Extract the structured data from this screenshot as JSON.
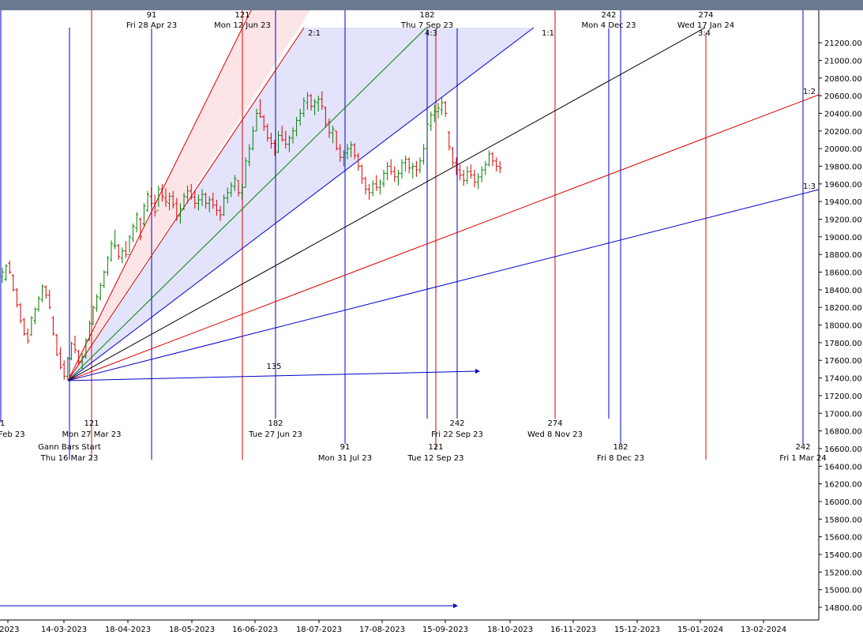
{
  "chart_data": {
    "type": "gann-bar-chart",
    "y_axis": {
      "ylim": [
        14700,
        21450
      ],
      "ticks": [
        "14800.00",
        "15000.00",
        "15200.00",
        "15400.00",
        "15600.00",
        "15800.00",
        "16000.00",
        "16200.00",
        "16400.00",
        "16600.00",
        "16800.00",
        "17000.00",
        "17200.00",
        "17400.00",
        "17600.00",
        "17800.00",
        "18000.00",
        "18200.00",
        "18400.00",
        "18600.00",
        "18800.00",
        "19000.00",
        "19200.00",
        "19400.00",
        "19600.00",
        "19800.00",
        "20000.00",
        "20200.00",
        "20400.00",
        "20600.00",
        "20800.00",
        "21000.00",
        "21200.00"
      ]
    },
    "x_axis": {
      "ticks": [
        "-2023",
        "14-03-2023",
        "18-04-2023",
        "18-05-2023",
        "16-06-2023",
        "18-07-2023",
        "17-08-2023",
        "15-09-2023",
        "18-10-2023",
        "16-11-2023",
        "15-12-2023",
        "15-01-2024",
        "13-02-2024"
      ]
    },
    "colors": {
      "blue": "#0000cc",
      "red": "#dd0000",
      "green": "#008000",
      "black": "#000000",
      "band_blue": "#e3e3fb",
      "band_red": "#fde4e6",
      "header": "#6b7a90"
    },
    "gann_origin": {
      "label1": "Gann Bars Start",
      "label2": "Thu 16 Mar 23",
      "price": 17370
    },
    "fan_labels": [
      "2:1",
      "4:3",
      "1:1",
      "3:4",
      "1:2",
      "1:3"
    ],
    "horizontal_ray_label": "135",
    "cycle_lines_top": [
      {
        "count": "91",
        "date": "Fri 28 Apr 23",
        "color": "blue"
      },
      {
        "count": "121",
        "date": "Mon 12 Jun 23",
        "color": "red"
      },
      {
        "count": "182",
        "date": "Thu 7 Sep 23",
        "color": "blue"
      },
      {
        "count": "242",
        "date": "Mon 4 Dec 23",
        "color": "blue"
      },
      {
        "count": "274",
        "date": "Wed 17 Jan 24",
        "color": "red"
      }
    ],
    "cycle_lines_bottom": [
      {
        "count": "1",
        "date": "Feb 23",
        "color": "blue"
      },
      {
        "count": "121",
        "date": "Mon 27 Mar 23",
        "color": "red"
      },
      {
        "count": "182",
        "date": "Tue 27 Jun 23",
        "color": "blue"
      },
      {
        "count": "91",
        "date": "Mon 31 Jul 23",
        "color": "blue"
      },
      {
        "count": "121",
        "date": "Tue 12 Sep 23",
        "color": "red"
      },
      {
        "count": "242",
        "date": "Fri 22 Sep 23",
        "color": "blue"
      },
      {
        "count": "274",
        "date": "Wed 8 Nov 23",
        "color": "red"
      },
      {
        "count": "182",
        "date": "Fri 8 Dec 23",
        "color": "blue"
      },
      {
        "count": "242",
        "date": "Fri 1 Mar 24",
        "color": "blue"
      }
    ],
    "price_bars": [
      {
        "h": 18650,
        "l": 18480,
        "o": 18550,
        "c": 18600
      },
      {
        "h": 18690,
        "l": 18500,
        "o": 18520,
        "c": 18670
      },
      {
        "h": 18730,
        "l": 18580,
        "o": 18700,
        "c": 18600
      },
      {
        "h": 18580,
        "l": 18380,
        "o": 18560,
        "c": 18400
      },
      {
        "h": 18420,
        "l": 18200,
        "o": 18400,
        "c": 18230
      },
      {
        "h": 18250,
        "l": 18020,
        "o": 18230,
        "c": 18050
      },
      {
        "h": 18080,
        "l": 17880,
        "o": 18060,
        "c": 17900
      },
      {
        "h": 17960,
        "l": 17790,
        "o": 17900,
        "c": 17820
      },
      {
        "h": 18100,
        "l": 17880,
        "o": 17890,
        "c": 18080
      },
      {
        "h": 18200,
        "l": 18010,
        "o": 18050,
        "c": 18180
      },
      {
        "h": 18330,
        "l": 18150,
        "o": 18180,
        "c": 18300
      },
      {
        "h": 18460,
        "l": 18260,
        "o": 18290,
        "c": 18440
      },
      {
        "h": 18450,
        "l": 18300,
        "o": 18430,
        "c": 18340
      },
      {
        "h": 18400,
        "l": 18180,
        "o": 18340,
        "c": 18200
      },
      {
        "h": 18100,
        "l": 17880,
        "o": 18080,
        "c": 17900
      },
      {
        "h": 17900,
        "l": 17650,
        "o": 17880,
        "c": 17660
      },
      {
        "h": 17750,
        "l": 17500,
        "o": 17680,
        "c": 17520
      },
      {
        "h": 17600,
        "l": 17380,
        "o": 17550,
        "c": 17420
      },
      {
        "h": 17640,
        "l": 17380,
        "o": 17420,
        "c": 17620
      },
      {
        "h": 17810,
        "l": 17600,
        "o": 17620,
        "c": 17790
      },
      {
        "h": 17880,
        "l": 17680,
        "o": 17780,
        "c": 17720
      },
      {
        "h": 17720,
        "l": 17550,
        "o": 17700,
        "c": 17580
      },
      {
        "h": 17680,
        "l": 17500,
        "o": 17580,
        "c": 17640
      },
      {
        "h": 17850,
        "l": 17620,
        "o": 17640,
        "c": 17830
      },
      {
        "h": 18050,
        "l": 17820,
        "o": 17830,
        "c": 18020
      },
      {
        "h": 18220,
        "l": 18000,
        "o": 18010,
        "c": 18200
      },
      {
        "h": 18350,
        "l": 18150,
        "o": 18190,
        "c": 18320
      },
      {
        "h": 18480,
        "l": 18280,
        "o": 18310,
        "c": 18450
      },
      {
        "h": 18620,
        "l": 18420,
        "o": 18450,
        "c": 18600
      },
      {
        "h": 18780,
        "l": 18560,
        "o": 18600,
        "c": 18760
      },
      {
        "h": 18960,
        "l": 18720,
        "o": 18740,
        "c": 18920
      },
      {
        "h": 19080,
        "l": 18860,
        "o": 18900,
        "c": 18900
      },
      {
        "h": 18920,
        "l": 18740,
        "o": 18900,
        "c": 18780
      },
      {
        "h": 18880,
        "l": 18700,
        "o": 18760,
        "c": 18840
      },
      {
        "h": 18950,
        "l": 18760,
        "o": 18840,
        "c": 18800
      },
      {
        "h": 19020,
        "l": 18820,
        "o": 18800,
        "c": 19000
      },
      {
        "h": 19150,
        "l": 18940,
        "o": 18980,
        "c": 19120
      },
      {
        "h": 19280,
        "l": 19050,
        "o": 19100,
        "c": 19250
      },
      {
        "h": 19220,
        "l": 18960,
        "o": 19200,
        "c": 19000
      },
      {
        "h": 19380,
        "l": 19120,
        "o": 19150,
        "c": 19350
      },
      {
        "h": 19520,
        "l": 19280,
        "o": 19300,
        "c": 19480
      },
      {
        "h": 19560,
        "l": 19340,
        "o": 19460,
        "c": 19380
      },
      {
        "h": 19480,
        "l": 19230,
        "o": 19380,
        "c": 19280
      },
      {
        "h": 19580,
        "l": 19340,
        "o": 19300,
        "c": 19540
      },
      {
        "h": 19600,
        "l": 19400,
        "o": 19540,
        "c": 19460
      },
      {
        "h": 19550,
        "l": 19340,
        "o": 19440,
        "c": 19400
      },
      {
        "h": 19500,
        "l": 19300,
        "o": 19380,
        "c": 19460
      },
      {
        "h": 19520,
        "l": 19320,
        "o": 19460,
        "c": 19360
      },
      {
        "h": 19440,
        "l": 19180,
        "o": 19380,
        "c": 19240
      },
      {
        "h": 19380,
        "l": 19150,
        "o": 19240,
        "c": 19320
      },
      {
        "h": 19500,
        "l": 19300,
        "o": 19320,
        "c": 19460
      },
      {
        "h": 19580,
        "l": 19380,
        "o": 19450,
        "c": 19520
      },
      {
        "h": 19600,
        "l": 19420,
        "o": 19520,
        "c": 19450
      },
      {
        "h": 19520,
        "l": 19320,
        "o": 19450,
        "c": 19380
      },
      {
        "h": 19480,
        "l": 19300,
        "o": 19380,
        "c": 19420
      },
      {
        "h": 19540,
        "l": 19350,
        "o": 19420,
        "c": 19480
      },
      {
        "h": 19500,
        "l": 19320,
        "o": 19480,
        "c": 19380
      },
      {
        "h": 19460,
        "l": 19280,
        "o": 19380,
        "c": 19420
      },
      {
        "h": 19500,
        "l": 19320,
        "o": 19420,
        "c": 19360
      },
      {
        "h": 19420,
        "l": 19240,
        "o": 19360,
        "c": 19300
      },
      {
        "h": 19350,
        "l": 19180,
        "o": 19300,
        "c": 19250
      },
      {
        "h": 19480,
        "l": 19240,
        "o": 19250,
        "c": 19440
      },
      {
        "h": 19560,
        "l": 19380,
        "o": 19440,
        "c": 19500
      },
      {
        "h": 19620,
        "l": 19450,
        "o": 19500,
        "c": 19580
      },
      {
        "h": 19700,
        "l": 19520,
        "o": 19570,
        "c": 19660
      },
      {
        "h": 19640,
        "l": 19460,
        "o": 19640,
        "c": 19500
      },
      {
        "h": 19600,
        "l": 19420,
        "o": 19500,
        "c": 19560
      },
      {
        "h": 19900,
        "l": 19560,
        "o": 19560,
        "c": 19860
      },
      {
        "h": 20050,
        "l": 19800,
        "o": 19850,
        "c": 20000
      },
      {
        "h": 20250,
        "l": 19980,
        "o": 20000,
        "c": 20200
      },
      {
        "h": 20450,
        "l": 20200,
        "o": 20200,
        "c": 20400
      },
      {
        "h": 20560,
        "l": 20350,
        "o": 20400,
        "c": 20360
      },
      {
        "h": 20380,
        "l": 20200,
        "o": 20360,
        "c": 20250
      },
      {
        "h": 20280,
        "l": 20080,
        "o": 20250,
        "c": 20120
      },
      {
        "h": 20180,
        "l": 20000,
        "o": 20120,
        "c": 20060
      },
      {
        "h": 20100,
        "l": 19920,
        "o": 20060,
        "c": 19960
      },
      {
        "h": 20200,
        "l": 19950,
        "o": 19960,
        "c": 20150
      },
      {
        "h": 20260,
        "l": 20080,
        "o": 20150,
        "c": 20100
      },
      {
        "h": 20200,
        "l": 20000,
        "o": 20100,
        "c": 20050
      },
      {
        "h": 20150,
        "l": 19960,
        "o": 20050,
        "c": 20120
      },
      {
        "h": 20240,
        "l": 20060,
        "o": 20120,
        "c": 20200
      },
      {
        "h": 20360,
        "l": 20140,
        "o": 20200,
        "c": 20320
      },
      {
        "h": 20450,
        "l": 20260,
        "o": 20320,
        "c": 20400
      },
      {
        "h": 20580,
        "l": 20360,
        "o": 20400,
        "c": 20540
      },
      {
        "h": 20640,
        "l": 20440,
        "o": 20520,
        "c": 20600
      },
      {
        "h": 20620,
        "l": 20430,
        "o": 20600,
        "c": 20480
      },
      {
        "h": 20560,
        "l": 20380,
        "o": 20480,
        "c": 20530
      },
      {
        "h": 20600,
        "l": 20420,
        "o": 20520,
        "c": 20560
      },
      {
        "h": 20650,
        "l": 20440,
        "o": 20560,
        "c": 20480
      },
      {
        "h": 20480,
        "l": 20240,
        "o": 20460,
        "c": 20280
      },
      {
        "h": 20340,
        "l": 20120,
        "o": 20300,
        "c": 20180
      },
      {
        "h": 20260,
        "l": 20060,
        "o": 20180,
        "c": 20220
      },
      {
        "h": 20200,
        "l": 19980,
        "o": 20200,
        "c": 20000
      },
      {
        "h": 20050,
        "l": 19850,
        "o": 20000,
        "c": 19900
      },
      {
        "h": 19980,
        "l": 19800,
        "o": 19900,
        "c": 19950
      },
      {
        "h": 20050,
        "l": 19880,
        "o": 19950,
        "c": 20000
      },
      {
        "h": 20080,
        "l": 19900,
        "o": 20000,
        "c": 20040
      },
      {
        "h": 20060,
        "l": 19880,
        "o": 20040,
        "c": 19920
      },
      {
        "h": 19950,
        "l": 19750,
        "o": 19920,
        "c": 19800
      },
      {
        "h": 19820,
        "l": 19600,
        "o": 19800,
        "c": 19660
      },
      {
        "h": 19680,
        "l": 19480,
        "o": 19660,
        "c": 19540
      },
      {
        "h": 19600,
        "l": 19420,
        "o": 19540,
        "c": 19500
      },
      {
        "h": 19640,
        "l": 19460,
        "o": 19500,
        "c": 19600
      },
      {
        "h": 19700,
        "l": 19520,
        "o": 19600,
        "c": 19560
      },
      {
        "h": 19650,
        "l": 19480,
        "o": 19560,
        "c": 19620
      },
      {
        "h": 19760,
        "l": 19560,
        "o": 19600,
        "c": 19720
      },
      {
        "h": 19850,
        "l": 19640,
        "o": 19720,
        "c": 19800
      },
      {
        "h": 19880,
        "l": 19700,
        "o": 19800,
        "c": 19740
      },
      {
        "h": 19800,
        "l": 19620,
        "o": 19740,
        "c": 19680
      },
      {
        "h": 19760,
        "l": 19580,
        "o": 19680,
        "c": 19720
      },
      {
        "h": 19880,
        "l": 19660,
        "o": 19720,
        "c": 19840
      },
      {
        "h": 19920,
        "l": 19740,
        "o": 19840,
        "c": 19880
      },
      {
        "h": 19900,
        "l": 19720,
        "o": 19880,
        "c": 19780
      },
      {
        "h": 19840,
        "l": 19660,
        "o": 19780,
        "c": 19800
      },
      {
        "h": 19860,
        "l": 19680,
        "o": 19800,
        "c": 19760
      },
      {
        "h": 19900,
        "l": 19720,
        "o": 19760,
        "c": 19860
      },
      {
        "h": 20050,
        "l": 19820,
        "o": 19860,
        "c": 20000
      },
      {
        "h": 20300,
        "l": 20000,
        "o": 20000,
        "c": 20280
      },
      {
        "h": 20420,
        "l": 20200,
        "o": 20260,
        "c": 20380
      },
      {
        "h": 20500,
        "l": 20300,
        "o": 20380,
        "c": 20420
      },
      {
        "h": 20520,
        "l": 20340,
        "o": 20420,
        "c": 20460
      },
      {
        "h": 20580,
        "l": 20380,
        "o": 20440,
        "c": 20520
      },
      {
        "h": 20540,
        "l": 20360,
        "o": 20520,
        "c": 20400
      },
      {
        "h": 20200,
        "l": 19980,
        "o": 20180,
        "c": 20020
      },
      {
        "h": 20020,
        "l": 19800,
        "o": 20000,
        "c": 19840
      },
      {
        "h": 19900,
        "l": 19700,
        "o": 19840,
        "c": 19760
      },
      {
        "h": 19820,
        "l": 19640,
        "o": 19760,
        "c": 19700
      },
      {
        "h": 19760,
        "l": 19580,
        "o": 19700,
        "c": 19640
      },
      {
        "h": 19800,
        "l": 19600,
        "o": 19640,
        "c": 19740
      },
      {
        "h": 19820,
        "l": 19660,
        "o": 19740,
        "c": 19700
      },
      {
        "h": 19760,
        "l": 19560,
        "o": 19700,
        "c": 19620
      },
      {
        "h": 19720,
        "l": 19540,
        "o": 19620,
        "c": 19680
      },
      {
        "h": 19800,
        "l": 19620,
        "o": 19680,
        "c": 19760
      },
      {
        "h": 19860,
        "l": 19700,
        "o": 19760,
        "c": 19820
      },
      {
        "h": 19980,
        "l": 19800,
        "o": 19820,
        "c": 19940
      },
      {
        "h": 19960,
        "l": 19800,
        "o": 19940,
        "c": 19860
      },
      {
        "h": 19900,
        "l": 19740,
        "o": 19860,
        "c": 19800
      },
      {
        "h": 19860,
        "l": 19720,
        "o": 19800,
        "c": 19780
      }
    ]
  }
}
